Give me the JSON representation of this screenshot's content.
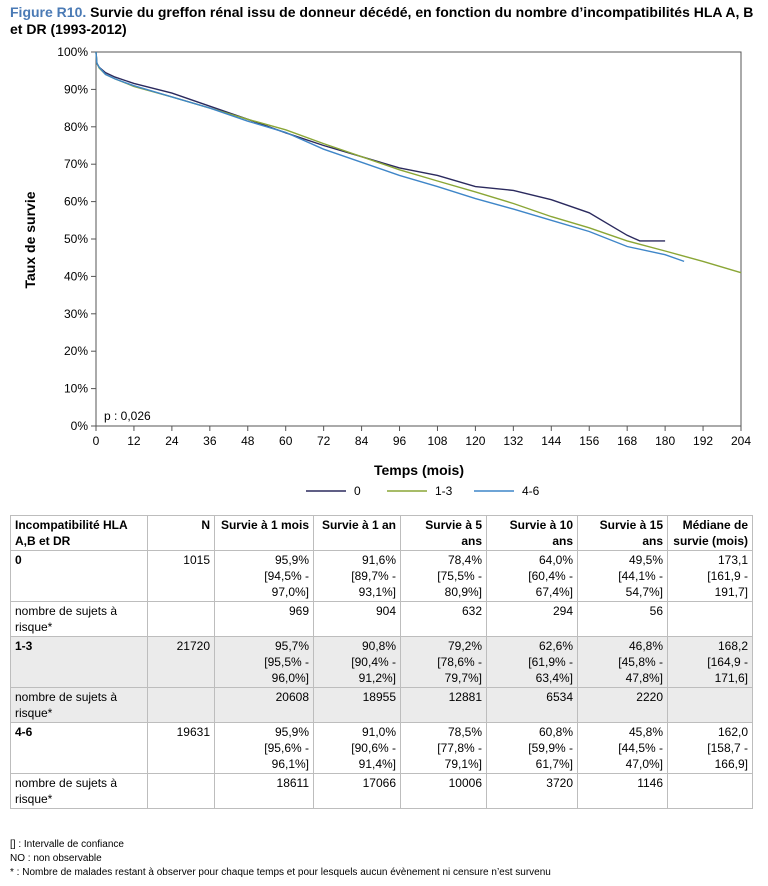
{
  "title": {
    "prefix": "Figure R10.",
    "text": "Survie du greffon rénal issu de donneur décédé, en fonction du nombre d’incompatibilités HLA A, B et DR (1993-2012)"
  },
  "chart_data": {
    "type": "line",
    "xlabel": "Temps (mois)",
    "ylabel": "Taux de survie",
    "xlim": [
      0,
      204
    ],
    "ylim": [
      0,
      100
    ],
    "x_ticks": [
      0,
      12,
      24,
      36,
      48,
      60,
      72,
      84,
      96,
      108,
      120,
      132,
      144,
      156,
      168,
      180,
      192,
      204
    ],
    "y_ticks": [
      "0%",
      "10%",
      "20%",
      "30%",
      "40%",
      "50%",
      "60%",
      "70%",
      "80%",
      "90%",
      "100%"
    ],
    "annotation": "p : 0,026",
    "legend_position": "bottom",
    "grid": false,
    "series": [
      {
        "name": "0",
        "color": "#2b2a5e",
        "points": [
          [
            0,
            100
          ],
          [
            0.3,
            97
          ],
          [
            1,
            95.9
          ],
          [
            3,
            94.5
          ],
          [
            6,
            93.3
          ],
          [
            12,
            91.6
          ],
          [
            24,
            89
          ],
          [
            36,
            85.5
          ],
          [
            48,
            82
          ],
          [
            60,
            78.4
          ],
          [
            72,
            75
          ],
          [
            84,
            72
          ],
          [
            96,
            69
          ],
          [
            108,
            67
          ],
          [
            120,
            64
          ],
          [
            132,
            63
          ],
          [
            144,
            60.5
          ],
          [
            156,
            57
          ],
          [
            164,
            53
          ],
          [
            168,
            51
          ],
          [
            172,
            49.5
          ],
          [
            180,
            49.5
          ]
        ]
      },
      {
        "name": "1-3",
        "color": "#8aa636",
        "points": [
          [
            0,
            100
          ],
          [
            0.3,
            97
          ],
          [
            1,
            95.7
          ],
          [
            3,
            94
          ],
          [
            6,
            92.8
          ],
          [
            12,
            90.8
          ],
          [
            24,
            88
          ],
          [
            36,
            85
          ],
          [
            48,
            82
          ],
          [
            60,
            79.2
          ],
          [
            72,
            75.5
          ],
          [
            84,
            72
          ],
          [
            96,
            68.5
          ],
          [
            108,
            65.5
          ],
          [
            120,
            62.6
          ],
          [
            132,
            59.5
          ],
          [
            144,
            56
          ],
          [
            156,
            53
          ],
          [
            168,
            49.5
          ],
          [
            180,
            46.8
          ],
          [
            192,
            44
          ],
          [
            204,
            41
          ]
        ]
      },
      {
        "name": "4-6",
        "color": "#3f86c8",
        "points": [
          [
            0,
            100
          ],
          [
            0.3,
            97
          ],
          [
            1,
            95.9
          ],
          [
            3,
            94
          ],
          [
            6,
            92.8
          ],
          [
            12,
            91
          ],
          [
            24,
            88
          ],
          [
            36,
            85
          ],
          [
            48,
            81.5
          ],
          [
            60,
            78.5
          ],
          [
            72,
            74
          ],
          [
            84,
            70.5
          ],
          [
            96,
            67
          ],
          [
            108,
            64
          ],
          [
            120,
            60.8
          ],
          [
            132,
            58
          ],
          [
            144,
            55
          ],
          [
            156,
            52
          ],
          [
            168,
            48
          ],
          [
            180,
            45.8
          ],
          [
            186,
            44
          ]
        ]
      }
    ]
  },
  "table": {
    "headers": [
      "Incompatibilité HLA A,B et DR",
      "N",
      "Survie à 1 mois",
      "Survie à 1 an",
      "Survie à 5 ans",
      "Survie à 10 ans",
      "Survie à 15 ans",
      "Médiane de survie (mois)"
    ],
    "groups": [
      {
        "label": "0",
        "n": "1015",
        "values": [
          [
            "95,9%",
            "[94,5% -",
            "97,0%]"
          ],
          [
            "91,6%",
            "[89,7% -",
            "93,1%]"
          ],
          [
            "78,4%",
            "[75,5% -",
            "80,9%]"
          ],
          [
            "64,0%",
            "[60,4% -",
            "67,4%]"
          ],
          [
            "49,5%",
            "[44,1% -",
            "54,7%]"
          ],
          [
            "173,1",
            "[161,9 -",
            "191,7]"
          ]
        ],
        "risk_label": "nombre de sujets à risque*",
        "risk": [
          "969",
          "904",
          "632",
          "294",
          "56",
          ""
        ]
      },
      {
        "label": "1-3",
        "n": "21720",
        "values": [
          [
            "95,7%",
            "[95,5% -",
            "96,0%]"
          ],
          [
            "90,8%",
            "[90,4% -",
            "91,2%]"
          ],
          [
            "79,2%",
            "[78,6% -",
            "79,7%]"
          ],
          [
            "62,6%",
            "[61,9% -",
            "63,4%]"
          ],
          [
            "46,8%",
            "[45,8% -",
            "47,8%]"
          ],
          [
            "168,2",
            "[164,9 -",
            "171,6]"
          ]
        ],
        "risk_label": "nombre de sujets à risque*",
        "risk": [
          "20608",
          "18955",
          "12881",
          "6534",
          "2220",
          ""
        ]
      },
      {
        "label": "4-6",
        "n": "19631",
        "values": [
          [
            "95,9%",
            "[95,6% -",
            "96,1%]"
          ],
          [
            "91,0%",
            "[90,6% -",
            "91,4%]"
          ],
          [
            "78,5%",
            "[77,8% -",
            "79,1%]"
          ],
          [
            "60,8%",
            "[59,9% -",
            "61,7%]"
          ],
          [
            "45,8%",
            "[44,5% -",
            "47,0%]"
          ],
          [
            "162,0",
            "[158,7 -",
            "166,9]"
          ]
        ],
        "risk_label": "nombre de sujets à risque*",
        "risk": [
          "18611",
          "17066",
          "10006",
          "3720",
          "1146",
          ""
        ]
      }
    ]
  },
  "notes": [
    "[] : Intervalle de confiance",
    "NO : non observable",
    "* : Nombre de malades restant à observer pour chaque temps et pour lesquels aucun évènement ni censure n’est survenu"
  ]
}
